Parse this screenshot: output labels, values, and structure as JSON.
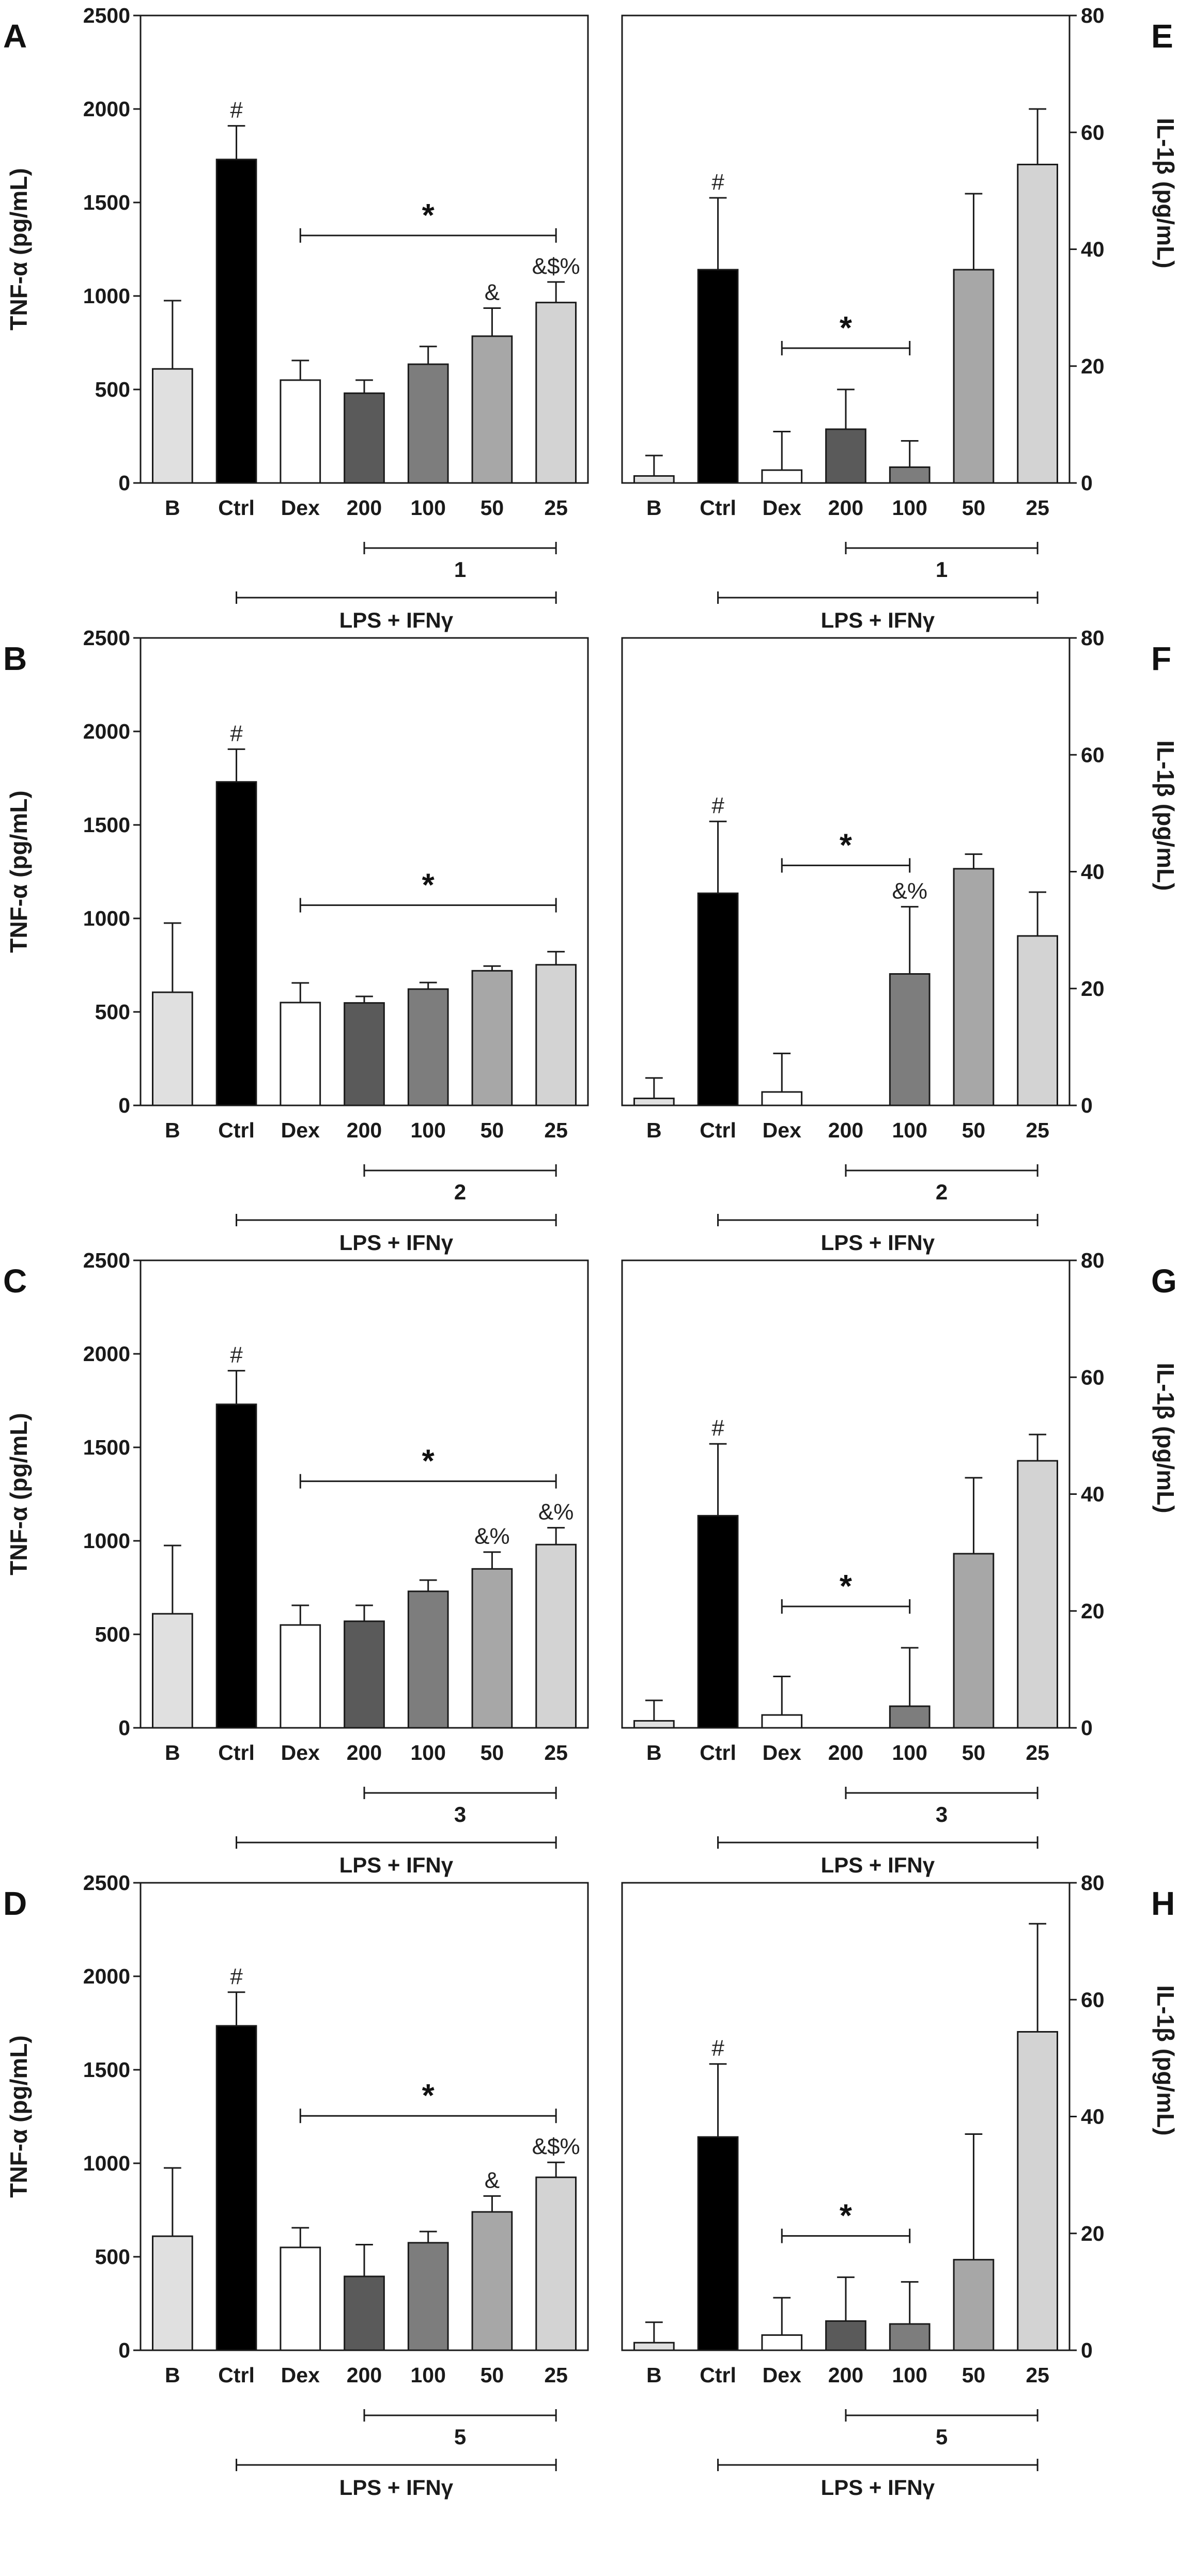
{
  "colors": {
    "B": "#e0e0e0",
    "Ctrl": "#000000",
    "Dex": "#ffffff",
    "200": "#5a5a5a",
    "100": "#7d7d7d",
    "50": "#a7a7a7",
    "25": "#d3d3d3"
  },
  "chart_data": [
    {
      "panel": "A",
      "type": "bar",
      "ylabel": "TNF-α (pg/mL)",
      "ylim": [
        0,
        2500
      ],
      "yticks": [
        "0",
        "500",
        "1000",
        "1500",
        "2000",
        "2500"
      ],
      "categories": [
        "B",
        "Ctrl",
        "Dex",
        "200",
        "100",
        "50",
        "25"
      ],
      "values": [
        610,
        1730,
        550,
        480,
        635,
        785,
        965
      ],
      "errors": [
        365,
        180,
        105,
        70,
        95,
        150,
        110
      ],
      "annotations": [
        "",
        "#",
        "",
        "",
        "",
        "&",
        "&$%"
      ],
      "compound_label": "1",
      "treatment_label": "LPS + IFNγ",
      "significance": "*"
    },
    {
      "panel": "E",
      "type": "bar",
      "ylabel": "IL-1β (pg/mL)",
      "ylim": [
        0,
        80
      ],
      "yticks": [
        "0",
        "20",
        "40",
        "60",
        "80"
      ],
      "categories": [
        "B",
        "Ctrl",
        "Dex",
        "200",
        "100",
        "50",
        "25"
      ],
      "values": [
        1.2,
        36.5,
        2.2,
        9.2,
        2.7,
        36.5,
        54.5
      ],
      "errors": [
        3.5,
        12.3,
        6.6,
        6.8,
        4.5,
        13,
        9.5
      ],
      "annotations": [
        "",
        "#",
        "",
        "",
        "",
        "",
        ""
      ],
      "compound_label": "1",
      "treatment_label": "LPS + IFNγ",
      "significance": "*"
    },
    {
      "panel": "B",
      "type": "bar",
      "ylabel": "TNF-α (pg/mL)",
      "ylim": [
        0,
        2500
      ],
      "yticks": [
        "0",
        "500",
        "1000",
        "1500",
        "2000",
        "2500"
      ],
      "categories": [
        "B",
        "Ctrl",
        "Dex",
        "200",
        "100",
        "50",
        "25"
      ],
      "values": [
        605,
        1730,
        550,
        548,
        622,
        720,
        752
      ],
      "errors": [
        370,
        175,
        105,
        35,
        35,
        25,
        70
      ],
      "annotations": [
        "",
        "#",
        "",
        "",
        "",
        "",
        ""
      ],
      "compound_label": "2",
      "treatment_label": "LPS + IFNγ",
      "significance": "*"
    },
    {
      "panel": "F",
      "type": "bar",
      "ylabel": "IL-1β (pg/mL)",
      "ylim": [
        0,
        80
      ],
      "yticks": [
        "0",
        "20",
        "40",
        "60",
        "80"
      ],
      "categories": [
        "B",
        "Ctrl",
        "Dex",
        "200",
        "100",
        "50",
        "25"
      ],
      "values": [
        1.2,
        36.3,
        2.3,
        0,
        22.5,
        40.5,
        29
      ],
      "errors": [
        3.5,
        12.3,
        6.6,
        0,
        11.5,
        2.5,
        7.5
      ],
      "annotations": [
        "",
        "#",
        "",
        "",
        "&%",
        "",
        ""
      ],
      "compound_label": "2",
      "treatment_label": "LPS + IFNγ",
      "significance": "*"
    },
    {
      "panel": "C",
      "type": "bar",
      "ylabel": "TNF-α (pg/mL)",
      "ylim": [
        0,
        2500
      ],
      "yticks": [
        "0",
        "500",
        "1000",
        "1500",
        "2000",
        "2500"
      ],
      "categories": [
        "B",
        "Ctrl",
        "Dex",
        "200",
        "100",
        "50",
        "25"
      ],
      "values": [
        610,
        1730,
        550,
        570,
        730,
        850,
        980
      ],
      "errors": [
        365,
        180,
        105,
        85,
        60,
        90,
        90
      ],
      "annotations": [
        "",
        "#",
        "",
        "",
        "",
        "&%",
        "&%"
      ],
      "compound_label": "3",
      "treatment_label": "LPS + IFNγ",
      "significance": "*"
    },
    {
      "panel": "G",
      "type": "bar",
      "ylabel": "IL-1β (pg/mL)",
      "ylim": [
        0,
        80
      ],
      "yticks": [
        "0",
        "20",
        "40",
        "60",
        "80"
      ],
      "categories": [
        "B",
        "Ctrl",
        "Dex",
        "200",
        "100",
        "50",
        "25"
      ],
      "values": [
        1.2,
        36.3,
        2.2,
        0,
        3.7,
        29.8,
        45.7
      ],
      "errors": [
        3.5,
        12.3,
        6.6,
        0,
        10,
        13,
        4.5
      ],
      "annotations": [
        "",
        "#",
        "",
        "",
        "",
        "",
        ""
      ],
      "compound_label": "3",
      "treatment_label": "LPS + IFNγ",
      "significance": "*"
    },
    {
      "panel": "D",
      "type": "bar",
      "ylabel": "TNF-α (pg/mL)",
      "ylim": [
        0,
        2500
      ],
      "yticks": [
        "0",
        "500",
        "1000",
        "1500",
        "2000",
        "2500"
      ],
      "categories": [
        "B",
        "Ctrl",
        "Dex",
        "200",
        "100",
        "50",
        "25"
      ],
      "values": [
        610,
        1735,
        550,
        395,
        575,
        740,
        925
      ],
      "errors": [
        365,
        180,
        105,
        170,
        60,
        85,
        80
      ],
      "annotations": [
        "",
        "#",
        "",
        "",
        "",
        "&",
        "&$%"
      ],
      "compound_label": "5",
      "treatment_label": "LPS + IFNγ",
      "significance": "*"
    },
    {
      "panel": "H",
      "type": "bar",
      "ylabel": "IL-1β (pg/mL)",
      "ylim": [
        0,
        80
      ],
      "yticks": [
        "0",
        "20",
        "40",
        "60",
        "80"
      ],
      "categories": [
        "B",
        "Ctrl",
        "Dex",
        "200",
        "100",
        "50",
        "25"
      ],
      "values": [
        1.3,
        36.5,
        2.6,
        5,
        4.5,
        15.5,
        54.5
      ],
      "errors": [
        3.5,
        12.5,
        6.4,
        7.5,
        7.2,
        21.5,
        18.5
      ],
      "annotations": [
        "",
        "#",
        "",
        "",
        "",
        "",
        ""
      ],
      "compound_label": "5",
      "treatment_label": "LPS + IFNγ",
      "significance": "*"
    }
  ]
}
